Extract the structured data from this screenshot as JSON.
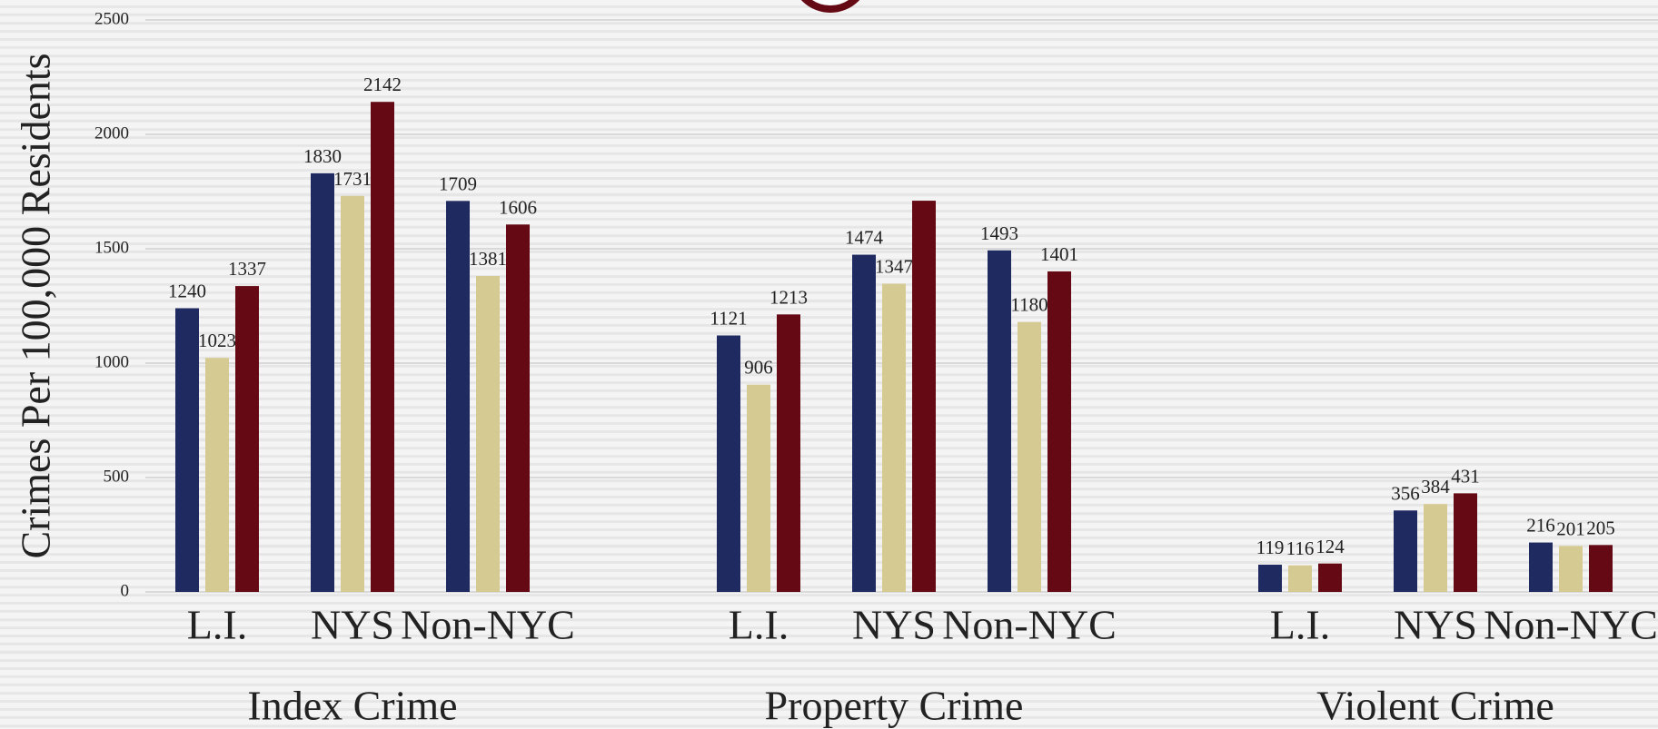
{
  "chart_data": {
    "type": "bar",
    "ylabel": "Crimes Per 100,000 Residents",
    "ylim": [
      0,
      2500
    ],
    "yticks": [
      0,
      500,
      1000,
      1500,
      2000,
      2500
    ],
    "grid": true,
    "groups": [
      {
        "name": "Index Crime",
        "categories": [
          "L.I.",
          "NYS",
          "Non-NYC"
        ],
        "series": [
          {
            "color": "#1f2a60",
            "values": [
              1240,
              1830,
              1709
            ]
          },
          {
            "color": "#d6ca93",
            "values": [
              1023,
              1731,
              1381
            ]
          },
          {
            "color": "#650a14",
            "values": [
              1337,
              2142,
              1606
            ]
          }
        ]
      },
      {
        "name": "Property Crime",
        "categories": [
          "L.I.",
          "NYS",
          "Non-NYC"
        ],
        "series": [
          {
            "color": "#1f2a60",
            "values": [
              1121,
              1474,
              1493
            ]
          },
          {
            "color": "#d6ca93",
            "values": [
              906,
              1347,
              1180
            ]
          },
          {
            "color": "#650a14",
            "values": [
              1213,
              1710,
              1401
            ],
            "value_labels": [
              "1213",
              null,
              "1401"
            ]
          }
        ]
      },
      {
        "name": "Violent Crime",
        "categories": [
          "L.I.",
          "NYS",
          "Non-NYC"
        ],
        "series": [
          {
            "color": "#1f2a60",
            "values": [
              119,
              356,
              216
            ]
          },
          {
            "color": "#d6ca93",
            "values": [
              116,
              384,
              201
            ]
          },
          {
            "color": "#650a14",
            "values": [
              124,
              431,
              205
            ]
          }
        ]
      }
    ]
  }
}
